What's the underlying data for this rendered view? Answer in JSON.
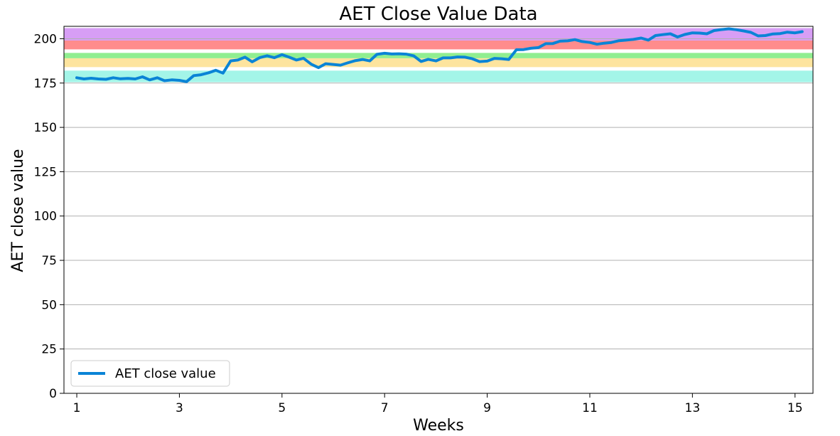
{
  "chart_data": {
    "type": "line",
    "title": "AET Close Value Data",
    "xlabel": "Weeks",
    "ylabel": "AET close value",
    "xlim": [
      0.75,
      15.35
    ],
    "ylim": [
      0,
      207
    ],
    "xticks": [
      1,
      3,
      5,
      7,
      9,
      11,
      13,
      15
    ],
    "yticks": [
      0,
      25,
      50,
      75,
      100,
      125,
      150,
      175,
      200
    ],
    "grid": "horizontal",
    "legend_position": "lower-left",
    "bands": [
      {
        "from": 175.5,
        "to": 182,
        "color": "#a3f5e8"
      },
      {
        "from": 184,
        "to": 189,
        "color": "#fde49e"
      },
      {
        "from": 189,
        "to": 192,
        "color": "#90ee90"
      },
      {
        "from": 194,
        "to": 199,
        "color": "#ff8c8c"
      },
      {
        "from": 199,
        "to": 206,
        "color": "#d79ef5"
      }
    ],
    "series": [
      {
        "name": "AET close value",
        "color": "#0a84d6",
        "x": [
          1.0,
          1.14,
          1.28,
          1.42,
          1.57,
          1.71,
          1.85,
          2.0,
          2.14,
          2.28,
          2.42,
          2.57,
          2.71,
          2.85,
          3.0,
          3.14,
          3.28,
          3.42,
          3.57,
          3.71,
          3.85,
          4.0,
          4.14,
          4.28,
          4.42,
          4.57,
          4.71,
          4.85,
          5.0,
          5.14,
          5.28,
          5.42,
          5.57,
          5.71,
          5.85,
          6.0,
          6.14,
          6.28,
          6.42,
          6.57,
          6.71,
          6.85,
          7.0,
          7.14,
          7.28,
          7.42,
          7.57,
          7.71,
          7.85,
          8.0,
          8.14,
          8.28,
          8.42,
          8.57,
          8.71,
          8.85,
          9.0,
          9.14,
          9.28,
          9.42,
          9.57,
          9.71,
          9.85,
          10.0,
          10.14,
          10.28,
          10.42,
          10.57,
          10.71,
          10.85,
          11.0,
          11.14,
          11.28,
          11.42,
          11.57,
          11.71,
          11.85,
          12.0,
          12.14,
          12.28,
          12.42,
          12.57,
          12.71,
          12.85,
          13.0,
          13.14,
          13.28,
          13.42,
          13.57,
          13.71,
          13.85,
          14.0,
          14.14,
          14.28,
          14.42,
          14.57,
          14.71,
          14.85,
          15.0,
          15.14
        ],
        "values": [
          178,
          177.3,
          177.7,
          177.3,
          177.1,
          178,
          177.4,
          177.6,
          177.3,
          178.5,
          176.8,
          178,
          176.3,
          176.8,
          176.5,
          175.8,
          179.2,
          179.7,
          180.8,
          182.2,
          180.6,
          187.5,
          188,
          189.6,
          187,
          189.4,
          190.4,
          189.3,
          191,
          189.6,
          188,
          189,
          185.6,
          183.7,
          185.9,
          185.5,
          185.1,
          186.4,
          187.6,
          188.3,
          187.5,
          191.2,
          191.8,
          191.4,
          191.5,
          191.3,
          190.3,
          187.2,
          188.4,
          187.5,
          189.2,
          189.2,
          189.7,
          189.6,
          188.7,
          187.1,
          187.4,
          188.9,
          188.7,
          188.3,
          193.8,
          193.9,
          194.6,
          195,
          197.2,
          197.3,
          198.6,
          198.8,
          199.5,
          198.4,
          197.9,
          196.9,
          197.5,
          197.9,
          198.9,
          199.2,
          199.6,
          200.4,
          199.2,
          201.8,
          202.3,
          202.8,
          201,
          202.4,
          203.3,
          203.2,
          202.8,
          204.6,
          205.2,
          205.6,
          205.1,
          204.4,
          203.6,
          201.6,
          201.8,
          202.7,
          202.9,
          203.7,
          203.3,
          204
        ]
      }
    ]
  }
}
